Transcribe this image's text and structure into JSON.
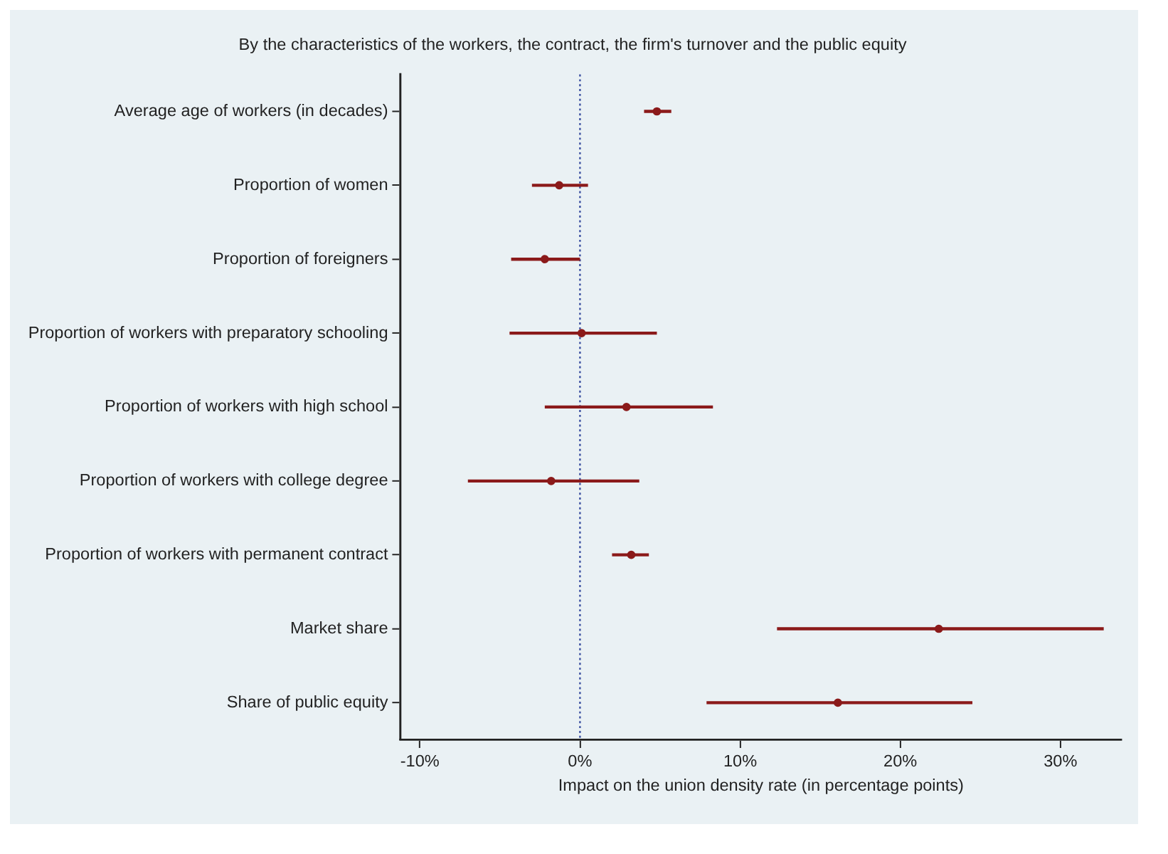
{
  "chart_data": {
    "type": "scatter",
    "orientation": "horizontal",
    "title": "By the characteristics of the workers, the contract, the firm's turnover and the public equity",
    "xlabel": "Impact on the union density rate (in percentage points)",
    "categories": [
      "Average age of workers (in decades)",
      "Proportion of women",
      "Proportion of foreigners",
      "Proportion of workers with preparatory schooling",
      "Proportion of workers with high school",
      "Proportion of workers with college degree",
      "Proportion of workers with permanent contract",
      "Market share",
      "Share of public equity"
    ],
    "values": [
      4.8,
      -1.3,
      -2.2,
      0.1,
      2.9,
      -1.8,
      3.2,
      22.4,
      16.1
    ],
    "errors": [
      [
        4.0,
        5.7
      ],
      [
        -3.0,
        0.5
      ],
      [
        -4.3,
        0.0
      ],
      [
        -4.4,
        4.8
      ],
      [
        -2.2,
        8.3
      ],
      [
        -7.0,
        3.7
      ],
      [
        2.0,
        4.3
      ],
      [
        12.3,
        32.7
      ],
      [
        7.9,
        24.5
      ]
    ],
    "color": "#8b1a1a",
    "marker": "circle",
    "xlim": [
      -11.2,
      33.8
    ],
    "xticks": [
      {
        "value": -10,
        "label": "-10%"
      },
      {
        "value": 0,
        "label": "0%"
      },
      {
        "value": 10,
        "label": "10%"
      },
      {
        "value": 20,
        "label": "20%"
      },
      {
        "value": 30,
        "label": "30%"
      }
    ],
    "ref_lines": [
      {
        "axis": "x",
        "value": 0,
        "color": "#3a4fa0",
        "line_style": "dotted"
      }
    ],
    "grid": false,
    "legend": false
  }
}
